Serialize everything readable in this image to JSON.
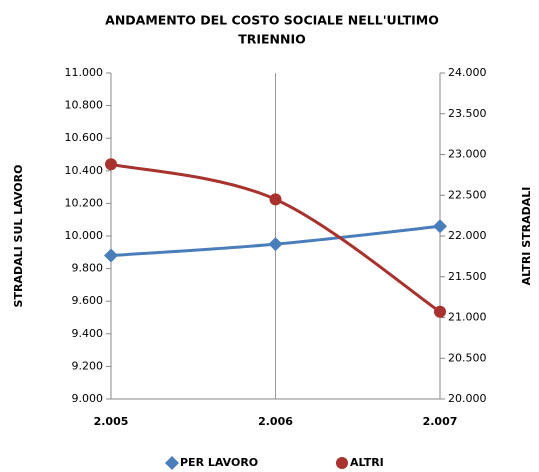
{
  "chart_data": {
    "type": "line",
    "title": "ANDAMENTO DEL COSTO SOCIALE NELL'ULTIMO TRIENNIO",
    "y_label": "STRADALI SUL LAVORO",
    "y2_label": "ALTRI STRADALI",
    "categories": [
      "2.005",
      "2.006",
      "2.007"
    ],
    "series": [
      {
        "name": "PER LAVORO",
        "color": "#4a7ebb",
        "marker": "diamond",
        "values": [
          9880,
          9950,
          10060
        ]
      },
      {
        "name": "ALTRI",
        "color": "#a8322d",
        "marker": "circle",
        "axis": "y2",
        "values": [
          22880,
          22450,
          21070
        ]
      }
    ],
    "ylim": [
      9000,
      11000
    ],
    "yticks": [
      {
        "value": 9000,
        "label": "9.000"
      },
      {
        "value": 9200,
        "label": "9.200"
      },
      {
        "value": 9400,
        "label": "9.400"
      },
      {
        "value": 9600,
        "label": "9.600"
      },
      {
        "value": 9800,
        "label": "9.800"
      },
      {
        "value": 10000,
        "label": "10.000"
      },
      {
        "value": 10200,
        "label": "10.200"
      },
      {
        "value": 10400,
        "label": "10.400"
      },
      {
        "value": 10600,
        "label": "10.600"
      },
      {
        "value": 10800,
        "label": "10.800"
      },
      {
        "value": 11000,
        "label": "11.000"
      }
    ],
    "y2lim": [
      20000,
      24000
    ],
    "y2ticks": [
      {
        "value": 20000,
        "label": "20.000"
      },
      {
        "value": 20500,
        "label": "20.500"
      },
      {
        "value": 21000,
        "label": "21.000"
      },
      {
        "value": 21500,
        "label": "21.500"
      },
      {
        "value": 22000,
        "label": "22.000"
      },
      {
        "value": 22500,
        "label": "22.500"
      },
      {
        "value": 23000,
        "label": "23.000"
      },
      {
        "value": 23500,
        "label": "23.500"
      },
      {
        "value": 24000,
        "label": "24.000"
      }
    ],
    "legend": "bottom",
    "smooth": true
  }
}
